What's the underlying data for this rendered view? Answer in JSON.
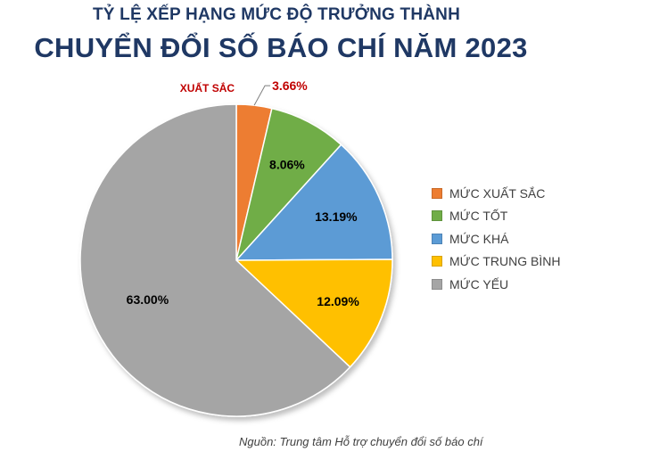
{
  "chart_data": {
    "type": "pie",
    "subtitle": "TỶ LỆ XẾP HẠNG MỨC ĐỘ TRƯỞNG THÀNH",
    "title": "CHUYỂN ĐỔI SỐ BÁO CHÍ NĂM 2023",
    "legend_position": "right",
    "slices": [
      {
        "name": "MỨC XUẤT SẮC",
        "value": 3.66,
        "label": "3.66%",
        "color": "#ed7d31",
        "label_color": "#c00000"
      },
      {
        "name": "MỨC TỐT",
        "value": 8.06,
        "label": "8.06%",
        "color": "#70ad47",
        "label_color": "#000000"
      },
      {
        "name": "MỨC KHÁ",
        "value": 13.19,
        "label": "13.19%",
        "color": "#5b9bd5",
        "label_color": "#000000"
      },
      {
        "name": "MỨC TRUNG BÌNH",
        "value": 12.09,
        "label": "12.09%",
        "color": "#ffc000",
        "label_color": "#000000"
      },
      {
        "name": "MỨC YẾU",
        "value": 63.0,
        "label": "63.00%",
        "color": "#a5a5a5",
        "label_color": "#000000"
      }
    ],
    "callout": {
      "text": "XUẤT SẮC",
      "color": "#c00000"
    }
  },
  "footer": {
    "source": "Nguồn: Trung tâm Hỗ trợ chuyển đổi số báo chí"
  }
}
